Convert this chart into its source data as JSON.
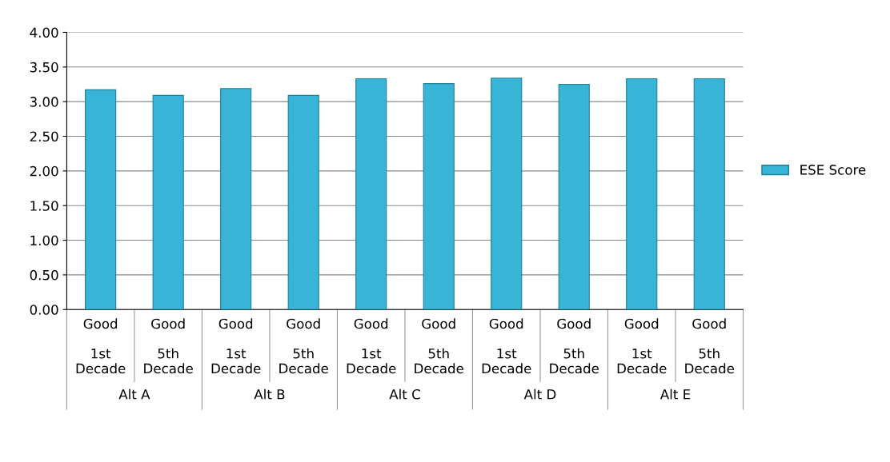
{
  "chart_data": {
    "type": "bar",
    "categories": [
      "Good\n\n1st\nDecade",
      "Good\n\n5th\nDecade",
      "Good\n\n1st\nDecade",
      "Good\n\n5th\nDecade",
      "Good\n\n1st\nDecade",
      "Good\n\n5th\nDecade",
      "Good\n\n1st\nDecade",
      "Good\n\n5th\nDecade",
      "Good\n\n1st\nDecade",
      "Good\n\n5th\nDecade"
    ],
    "series": [
      {
        "name": "ESE Score",
        "color": "#38b4d6",
        "values": [
          3.17,
          3.09,
          3.19,
          3.09,
          3.33,
          3.26,
          3.34,
          3.25,
          3.33,
          3.33
        ]
      }
    ],
    "annotations": [
      "Alt A",
      "Alt B",
      "Alt C",
      "Alt D",
      "Alt E"
    ],
    "ylim": [
      0,
      4
    ],
    "yticks": [
      {
        "value": 0,
        "label": "0.00"
      },
      {
        "value": 0.5,
        "label": "0.50"
      },
      {
        "value": 1,
        "label": "1.00"
      },
      {
        "value": 1.5,
        "label": "1.50"
      },
      {
        "value": 2,
        "label": "2.00"
      },
      {
        "value": 2.5,
        "label": "2.50"
      },
      {
        "value": 3,
        "label": "3.00"
      },
      {
        "value": 3.5,
        "label": "3.50"
      },
      {
        "value": 4,
        "label": "4.00"
      }
    ],
    "grid": "y",
    "legend": "right"
  }
}
